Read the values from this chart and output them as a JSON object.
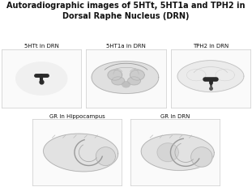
{
  "title": "Autoradiographic images of 5HTt, 5HT1a and TPH2 in\nDorsal Raphe Nucleus (DRN)",
  "title_fontsize": 7.0,
  "title_fontweight": "bold",
  "panels": [
    {
      "label": "5HTt in DRN"
    },
    {
      "label": "5HT1a in DRN"
    },
    {
      "label": "TPH2 in DRN"
    },
    {
      "label": "GR in Hippocampus"
    },
    {
      "label": "GR in DRN"
    }
  ],
  "label_fontsize": 5.0,
  "fig_bg": "#ffffff",
  "panel_bg": "#fafafa",
  "panel_edge": "#cccccc",
  "brain_fill": "#e8e8e8",
  "brain_edge": "#b0b0b0",
  "dark_nucleus": "#2a2a2a",
  "light_structure": "#d0d0d0"
}
